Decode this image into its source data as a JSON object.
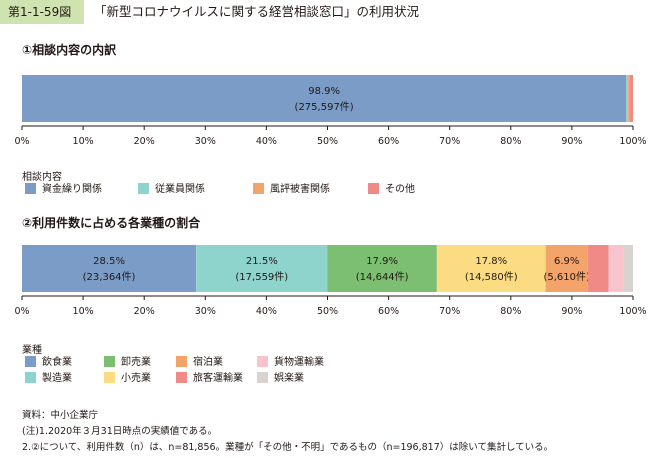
{
  "header": {
    "figure_number": "第1-1-59図",
    "title": "「新型コロナウイルスに関する経営相談窓口」の利用状況"
  },
  "colors": {
    "blue": "#7a9cc6",
    "teal": "#8fd3cd",
    "green": "#7dbf72",
    "yellow": "#fcdc82",
    "orange": "#f2a46b",
    "red": "#ef8a86",
    "pink": "#f7c3cd",
    "gray": "#d8d3cf"
  },
  "chart_data": [
    {
      "type": "bar",
      "orientation": "horizontal-stacked-100",
      "title": "①相談内容の内訳",
      "legend_title": "相談内容",
      "xlim": [
        0,
        100
      ],
      "x_ticks": [
        "0%",
        "10%",
        "20%",
        "30%",
        "40%",
        "50%",
        "60%",
        "70%",
        "80%",
        "90%",
        "100%"
      ],
      "series": [
        {
          "name": "資金繰り関係",
          "value": 98.9,
          "label": "98.9%",
          "count": "(275,597件)",
          "color": "#7a9cc6"
        },
        {
          "name": "従業員関係",
          "value": 0.3,
          "color": "#8fd3cd"
        },
        {
          "name": "風評被害関係",
          "value": 0.2,
          "color": "#f2a46b"
        },
        {
          "name": "その他",
          "value": 0.6,
          "color": "#ef8a86"
        }
      ]
    },
    {
      "type": "bar",
      "orientation": "horizontal-stacked-100",
      "title": "②利用件数に占める各業種の割合",
      "legend_title": "業種",
      "xlim": [
        0,
        100
      ],
      "x_ticks": [
        "0%",
        "10%",
        "20%",
        "30%",
        "40%",
        "50%",
        "60%",
        "70%",
        "80%",
        "90%",
        "100%"
      ],
      "series": [
        {
          "name": "飲食業",
          "value": 28.5,
          "label": "28.5%",
          "count": "(23,364件)",
          "color": "#7a9cc6"
        },
        {
          "name": "製造業",
          "value": 21.5,
          "label": "21.5%",
          "count": "(17,559件)",
          "color": "#8fd3cd"
        },
        {
          "name": "卸売業",
          "value": 17.9,
          "label": "17.9%",
          "count": "(14,644件)",
          "color": "#7dbf72"
        },
        {
          "name": "小売業",
          "value": 17.8,
          "label": "17.8%",
          "count": "(14,580件)",
          "color": "#fcdc82"
        },
        {
          "name": "宿泊業",
          "value": 6.9,
          "label": "6.9%",
          "count": "(5,610件)",
          "color": "#f2a46b"
        },
        {
          "name": "旅客運輸業",
          "value": 3.4,
          "color": "#ef8a86"
        },
        {
          "name": "貨物運輸業",
          "value": 2.5,
          "color": "#f7c3cd"
        },
        {
          "name": "娯楽業",
          "value": 1.5,
          "color": "#d8d3cf"
        }
      ],
      "legend_order": [
        "飲食業",
        "卸売業",
        "宿泊業",
        "貨物運輸業",
        "製造業",
        "小売業",
        "旅客運輸業",
        "娯楽業"
      ]
    }
  ],
  "notes": [
    "資料：中小企業庁",
    "(注)1.2020年３月31日時点の実績値である。",
    "2.②について、利用件数（n）は、n=81,856。業種が「その他・不明」であるもの（n=196,817）は除いて集計している。"
  ]
}
